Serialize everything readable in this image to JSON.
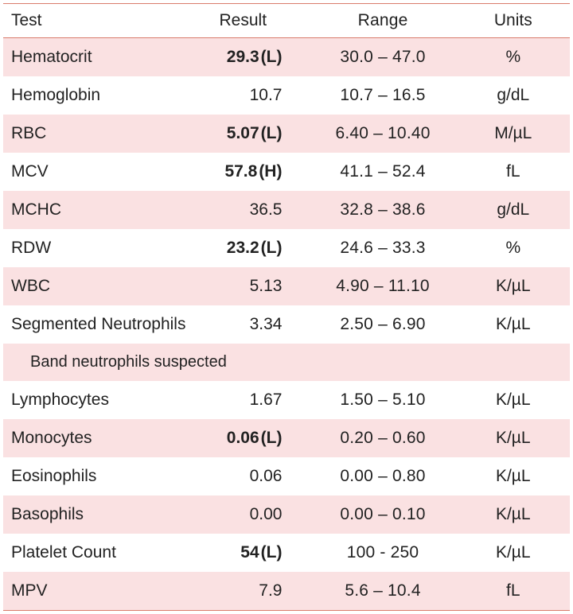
{
  "table": {
    "columns": {
      "test": "Test",
      "result": "Result",
      "range": "Range",
      "units": "Units"
    },
    "header_border_color": "#d97b6c",
    "stripe_color": "#fae1e2",
    "background_color": "#ffffff",
    "font_size_pt": 16,
    "rows": [
      {
        "kind": "data",
        "striped": true,
        "test": "Hematocrit",
        "result": "29.3",
        "flag": "(L)",
        "abnormal": true,
        "range": "30.0 – 47.0",
        "units": "%"
      },
      {
        "kind": "data",
        "striped": false,
        "test": "Hemoglobin",
        "result": "10.7",
        "flag": "",
        "abnormal": false,
        "range": "10.7 – 16.5",
        "units": "g/dL"
      },
      {
        "kind": "data",
        "striped": true,
        "test": "RBC",
        "result": "5.07",
        "flag": "(L)",
        "abnormal": true,
        "range": "6.40 – 10.40",
        "units": "M/µL"
      },
      {
        "kind": "data",
        "striped": false,
        "test": "MCV",
        "result": "57.8",
        "flag": "(H)",
        "abnormal": true,
        "range": "41.1 – 52.4",
        "units": "fL"
      },
      {
        "kind": "data",
        "striped": true,
        "test": "MCHC",
        "result": "36.5",
        "flag": "",
        "abnormal": false,
        "range": "32.8 – 38.6",
        "units": "g/dL"
      },
      {
        "kind": "data",
        "striped": false,
        "test": "RDW",
        "result": "23.2",
        "flag": "(L)",
        "abnormal": true,
        "range": "24.6 – 33.3",
        "units": "%"
      },
      {
        "kind": "data",
        "striped": true,
        "test": "WBC",
        "result": "5.13",
        "flag": "",
        "abnormal": false,
        "range": "4.90 – 11.10",
        "units": "K/µL"
      },
      {
        "kind": "data",
        "striped": false,
        "test": "Segmented Neutrophils",
        "result": "3.34",
        "flag": "",
        "abnormal": false,
        "range": "2.50 – 6.90",
        "units": "K/µL"
      },
      {
        "kind": "note",
        "striped": true,
        "note": "Band neutrophils suspected"
      },
      {
        "kind": "data",
        "striped": false,
        "test": "Lymphocytes",
        "result": "1.67",
        "flag": "",
        "abnormal": false,
        "range": "1.50 – 5.10",
        "units": "K/µL"
      },
      {
        "kind": "data",
        "striped": true,
        "test": "Monocytes",
        "result": "0.06",
        "flag": "(L)",
        "abnormal": true,
        "range": "0.20 – 0.60",
        "units": "K/µL"
      },
      {
        "kind": "data",
        "striped": false,
        "test": "Eosinophils",
        "result": "0.06",
        "flag": "",
        "abnormal": false,
        "range": "0.00 – 0.80",
        "units": "K/µL"
      },
      {
        "kind": "data",
        "striped": true,
        "test": "Basophils",
        "result": "0.00",
        "flag": "",
        "abnormal": false,
        "range": "0.00 – 0.10",
        "units": "K/µL"
      },
      {
        "kind": "data",
        "striped": false,
        "test": "Platelet Count",
        "result": "54",
        "flag": "(L)",
        "abnormal": true,
        "range": "100 - 250",
        "units": "K/µL"
      },
      {
        "kind": "data",
        "striped": true,
        "test": "MPV",
        "result": "7.9",
        "flag": "",
        "abnormal": false,
        "range": "5.6 – 10.4",
        "units": "fL"
      }
    ]
  }
}
